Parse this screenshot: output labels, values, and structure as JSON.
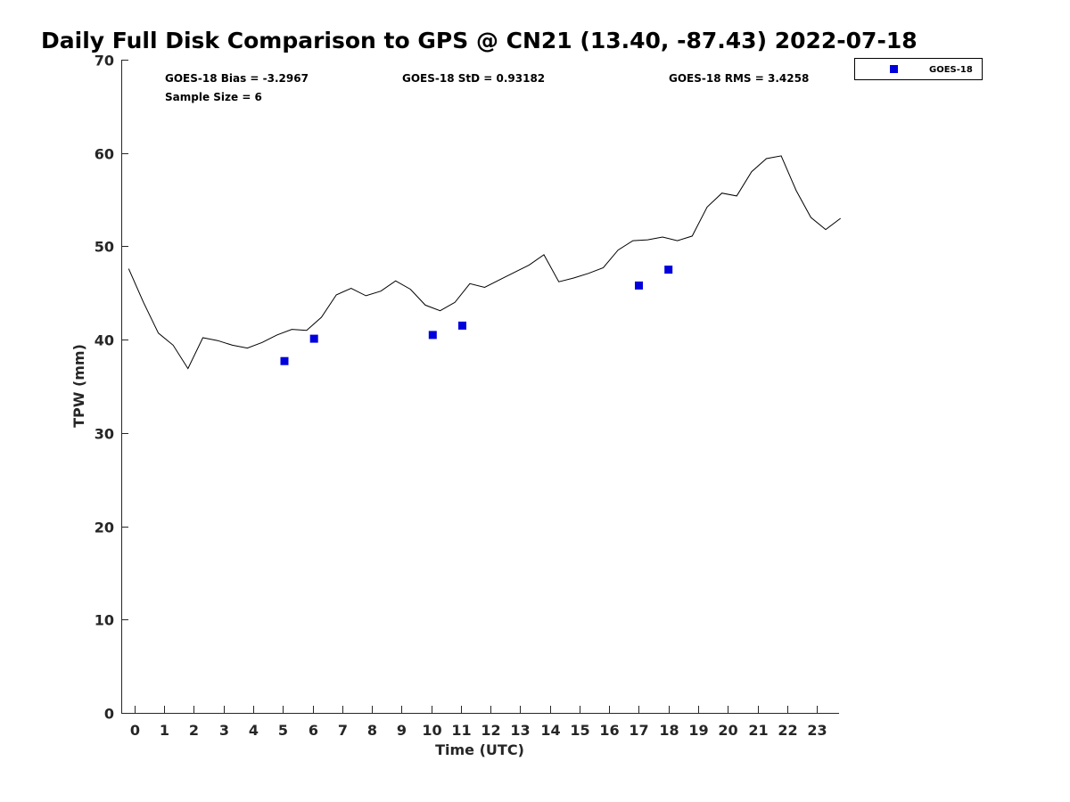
{
  "chart_data": {
    "type": "line",
    "title": "Daily Full Disk Comparison to GPS @ CN21 (13.40, -87.43) 2022-07-18",
    "xlabel": "Time (UTC)",
    "ylabel": "TPW (mm)",
    "xlim": [
      -0.45,
      23.75
    ],
    "ylim": [
      0,
      70
    ],
    "x_ticks": [
      0,
      1,
      2,
      3,
      4,
      5,
      6,
      7,
      8,
      9,
      10,
      11,
      12,
      13,
      14,
      15,
      16,
      17,
      18,
      19,
      20,
      21,
      22,
      23
    ],
    "y_ticks": [
      0,
      10,
      20,
      30,
      40,
      50,
      60,
      70
    ],
    "grid": false,
    "legend_position": "top-right (outside plot)",
    "stats": {
      "bias": "GOES-18 Bias = -3.2967",
      "std": "GOES-18 StD = 0.93182",
      "rms": "GOES-18 RMS = 3.4258",
      "sample_size": "Sample Size = 6"
    },
    "series": [
      {
        "style": "line",
        "color": "#000000",
        "x": [
          -0.2,
          0.3,
          0.8,
          1.3,
          1.8,
          2.3,
          2.8,
          3.3,
          3.8,
          4.3,
          4.8,
          5.3,
          5.8,
          6.3,
          6.8,
          7.3,
          7.8,
          8.3,
          8.8,
          9.3,
          9.8,
          10.3,
          10.8,
          11.3,
          11.8,
          12.3,
          12.8,
          13.3,
          13.8,
          14.3,
          14.8,
          15.3,
          15.8,
          16.3,
          16.8,
          17.3,
          17.8,
          18.3,
          18.8,
          19.3,
          19.8,
          20.3,
          20.8,
          21.3,
          21.8,
          22.3,
          22.8,
          23.3,
          23.8
        ],
        "y": [
          47.6,
          44.0,
          40.7,
          39.4,
          36.9,
          40.2,
          39.9,
          39.4,
          39.1,
          39.7,
          40.5,
          41.1,
          41.0,
          42.4,
          44.8,
          45.5,
          44.7,
          45.2,
          46.3,
          45.4,
          43.7,
          43.1,
          44.0,
          46.0,
          45.6,
          46.4,
          47.2,
          48.0,
          49.1,
          46.2,
          46.6,
          47.1,
          47.7,
          49.6,
          50.6,
          50.7,
          51.0,
          50.6,
          51.1,
          54.2,
          55.7,
          55.4,
          58.0,
          59.4,
          59.7,
          56.0,
          53.1,
          51.8,
          53.0
        ]
      },
      {
        "name": "GOES-18",
        "style": "marker-square",
        "color": "#0000dd",
        "x": [
          5.05,
          6.05,
          10.05,
          11.05,
          17.0,
          18.0
        ],
        "y": [
          37.7,
          40.1,
          40.5,
          41.5,
          45.8,
          47.5
        ]
      }
    ]
  }
}
